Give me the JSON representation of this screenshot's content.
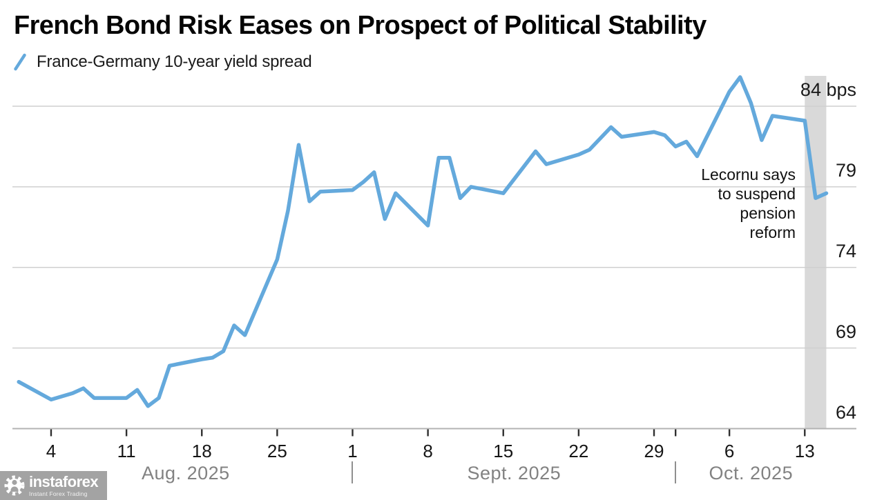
{
  "header": {
    "title": "French Bond Risk Eases on Prospect of Political Stability",
    "legend_label": "France-Germany 10-year yield spread"
  },
  "annotation": {
    "lines": [
      "Lecornu says",
      "to suspend",
      "pension",
      "reform"
    ]
  },
  "watermark": {
    "brand": "instaforex",
    "tagline": "Instant Forex Trading"
  },
  "colors": {
    "line": "#64a9dc",
    "band": "#d9d9d9",
    "grid": "#cfcfcf",
    "axis": "#b3b3b3",
    "tick": "#2f2f2f",
    "month_text": "#828282",
    "text": "#1a1a1a",
    "watermark_bg": "#a3a3a3"
  },
  "chart_data": {
    "type": "line",
    "title": "French Bond Risk Eases on Prospect of Political Stability",
    "legend_position": "top-left",
    "grid": true,
    "unit": "bps",
    "ylim": [
      64,
      86
    ],
    "yticks": [
      {
        "value": 84,
        "label": "84 bps"
      },
      {
        "value": 79,
        "label": "79"
      },
      {
        "value": 74,
        "label": "74"
      },
      {
        "value": 69,
        "label": "69"
      },
      {
        "value": 64,
        "label": "64"
      }
    ],
    "xticks": [
      {
        "date": "2025-08-04",
        "label": "4"
      },
      {
        "date": "2025-08-11",
        "label": "11"
      },
      {
        "date": "2025-08-18",
        "label": "18"
      },
      {
        "date": "2025-08-25",
        "label": "25"
      },
      {
        "date": "2025-09-01",
        "label": "1"
      },
      {
        "date": "2025-09-08",
        "label": "8"
      },
      {
        "date": "2025-09-15",
        "label": "15"
      },
      {
        "date": "2025-09-22",
        "label": "22"
      },
      {
        "date": "2025-09-29",
        "label": "29"
      },
      {
        "date": "2025-10-01",
        "label": ""
      },
      {
        "date": "2025-10-06",
        "label": "6"
      },
      {
        "date": "2025-10-13",
        "label": "13"
      }
    ],
    "months": [
      {
        "label": "Aug. 2025",
        "start": "2025-08-01",
        "end": "2025-09-01"
      },
      {
        "label": "Sept. 2025",
        "start": "2025-09-01",
        "end": "2025-10-01"
      },
      {
        "label": "Oct. 2025",
        "start": "2025-10-01",
        "end": "2025-10-15"
      }
    ],
    "month_separators": [
      "2025-09-01",
      "2025-10-01"
    ],
    "highlight_band": {
      "start": "2025-10-13",
      "end": "2025-10-15"
    },
    "annotation_text": "Lecornu says to suspend pension reform",
    "series": [
      {
        "name": "France-Germany 10-year yield spread",
        "x": [
          "2025-08-01",
          "2025-08-04",
          "2025-08-06",
          "2025-08-07",
          "2025-08-08",
          "2025-08-11",
          "2025-08-12",
          "2025-08-13",
          "2025-08-14",
          "2025-08-15",
          "2025-08-18",
          "2025-08-19",
          "2025-08-20",
          "2025-08-21",
          "2025-08-22",
          "2025-08-25",
          "2025-08-26",
          "2025-08-27",
          "2025-08-28",
          "2025-08-29",
          "2025-09-01",
          "2025-09-02",
          "2025-09-03",
          "2025-09-04",
          "2025-09-05",
          "2025-09-08",
          "2025-09-09",
          "2025-09-10",
          "2025-09-11",
          "2025-09-12",
          "2025-09-15",
          "2025-09-18",
          "2025-09-19",
          "2025-09-22",
          "2025-09-23",
          "2025-09-25",
          "2025-09-26",
          "2025-09-29",
          "2025-09-30",
          "2025-10-01",
          "2025-10-02",
          "2025-10-03",
          "2025-10-06",
          "2025-10-07",
          "2025-10-08",
          "2025-10-09",
          "2025-10-10",
          "2025-10-13",
          "2025-10-14",
          "2025-10-15"
        ],
        "values": [
          66.9,
          65.8,
          66.2,
          66.5,
          65.9,
          65.9,
          66.4,
          65.4,
          65.9,
          67.9,
          68.3,
          68.4,
          68.8,
          70.4,
          69.8,
          74.5,
          77.5,
          81.6,
          78.1,
          78.7,
          78.8,
          79.3,
          79.9,
          77.0,
          78.6,
          76.6,
          80.8,
          80.8,
          78.3,
          79.0,
          78.6,
          81.2,
          80.4,
          81.0,
          81.3,
          82.7,
          82.1,
          82.4,
          82.2,
          81.5,
          81.8,
          80.9,
          84.9,
          85.8,
          84.2,
          81.9,
          83.4,
          83.1,
          78.3,
          78.6
        ]
      }
    ]
  }
}
